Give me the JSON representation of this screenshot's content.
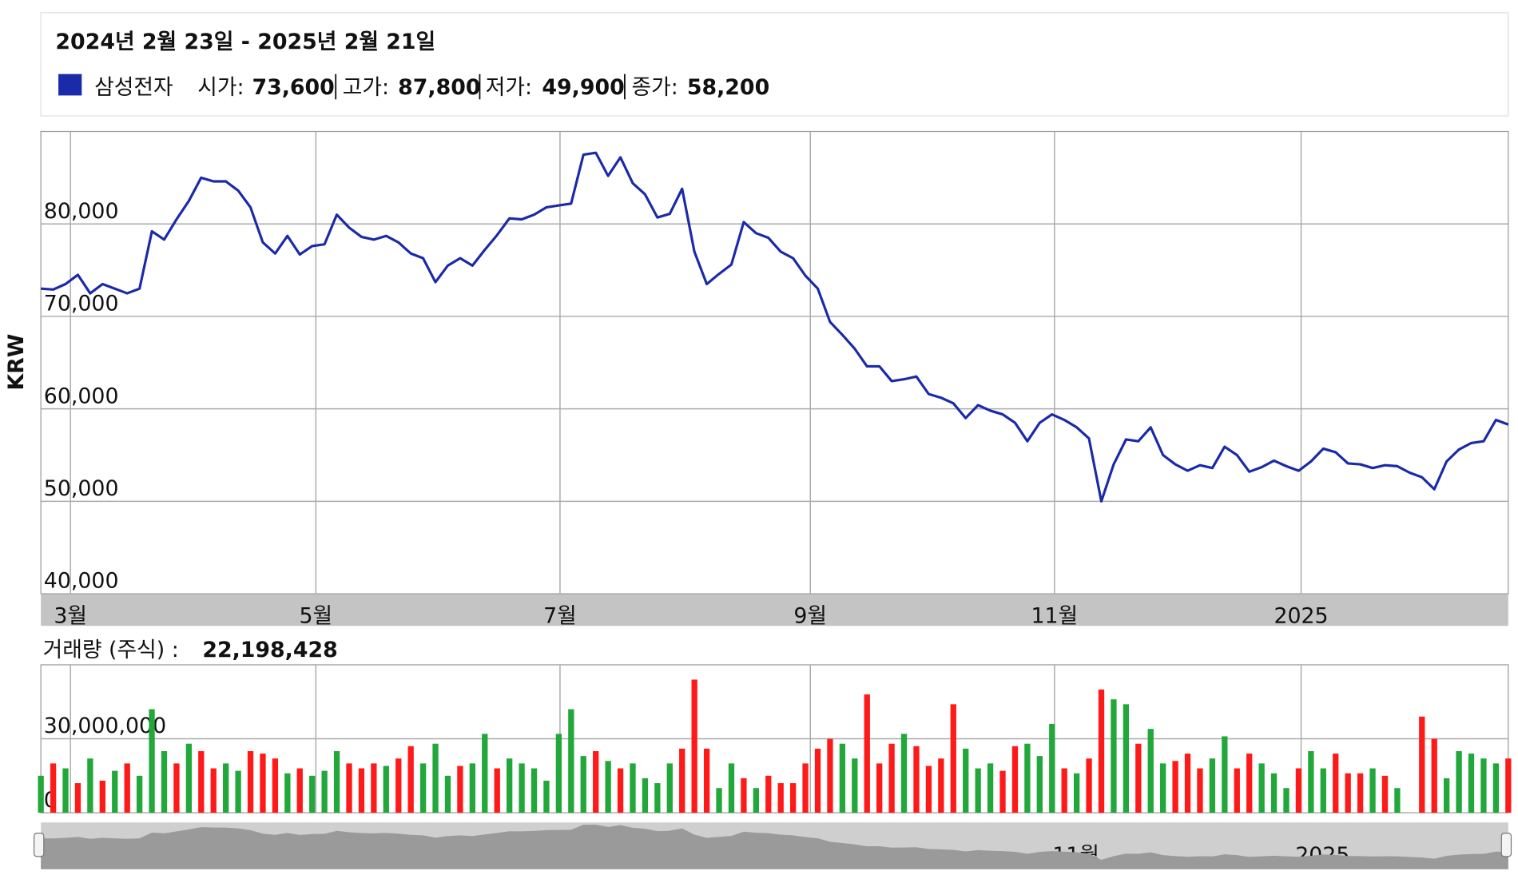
{
  "header": {
    "title": "2024년 2월 23일 - 2025년 2월 21일",
    "items": [
      {
        "label": "시가:",
        "value": "73,600"
      },
      {
        "label": "고가:",
        "value": "87,800"
      },
      {
        "label": "저가:",
        "value": "49,900"
      },
      {
        "label": "종가:",
        "value": "58,200"
      }
    ]
  },
  "chart_data": [
    {
      "type": "line",
      "ylabel": "KRW",
      "xlim": [
        0,
        119
      ],
      "xticks": [
        {
          "value": 2.4,
          "label": "3월"
        },
        {
          "value": 22.3,
          "label": "5월"
        },
        {
          "value": 42.1,
          "label": "7월"
        },
        {
          "value": 62.4,
          "label": "9월"
        },
        {
          "value": 82.2,
          "label": "11월"
        },
        {
          "value": 102.2,
          "label": "2025"
        }
      ],
      "ylim": [
        40000,
        90000
      ],
      "yticks": [
        {
          "value": 40000,
          "label": "40,000"
        },
        {
          "value": 50000,
          "label": "50,000"
        },
        {
          "value": 60000,
          "label": "60,000"
        },
        {
          "value": 70000,
          "label": "70,000"
        },
        {
          "value": 80000,
          "label": "80,000"
        }
      ],
      "grid": true,
      "series": [
        {
          "name": "삼성전자",
          "color": "#1a2aa8",
          "values": [
            73000,
            72900,
            73500,
            74500,
            72500,
            73500,
            73000,
            72500,
            73000,
            79200,
            78300,
            80500,
            82500,
            85000,
            84600,
            84600,
            83600,
            81800,
            78000,
            76800,
            78700,
            76700,
            77600,
            77800,
            81000,
            79600,
            78600,
            78300,
            78700,
            78000,
            76800,
            76300,
            73700,
            75500,
            76300,
            75500,
            77200,
            78800,
            80600,
            80500,
            81000,
            81800,
            82000,
            82200,
            87500,
            87700,
            85200,
            87200,
            84400,
            83200,
            80700,
            81100,
            83800,
            77000,
            73500,
            74600,
            75600,
            80200,
            79000,
            78500,
            77000,
            76300,
            74400,
            73000,
            69400,
            68000,
            66500,
            64600,
            64600,
            63000,
            63200,
            63500,
            61600,
            61200,
            60600,
            59000,
            60400,
            59800,
            59400,
            58500,
            56500,
            58500,
            59400,
            58800,
            58000,
            56800,
            50000,
            54000,
            56700,
            56500,
            58000,
            55000,
            54000,
            53300,
            53900,
            53600,
            55900,
            55000,
            53200,
            53700,
            54400,
            53800,
            53300,
            54300,
            55700,
            55300,
            54100,
            54000,
            53600,
            53900,
            53800,
            53100,
            52600,
            51300,
            54300,
            55600,
            56300,
            56500,
            58800,
            58300
          ]
        }
      ]
    },
    {
      "type": "bar",
      "title": "거래량 (주식) :",
      "title_value": "22,198,428",
      "ylim": [
        0,
        60000000
      ],
      "yticks": [
        0,
        {
          "value": 30000000,
          "label": "30,000,000"
        }
      ],
      "grid": true,
      "series": [
        {
          "values": [
            15000000,
            20000000,
            18000000,
            12000000,
            22000000,
            13000000,
            17000000,
            20000000,
            15000000,
            42000000,
            25000000,
            20000000,
            28000000,
            25000000,
            18000000,
            20000000,
            17000000,
            25000000,
            24000000,
            22000000,
            16000000,
            18000000,
            15000000,
            17000000,
            25000000,
            20000000,
            18000000,
            20000000,
            19000000,
            22000000,
            27000000,
            20000000,
            28000000,
            15000000,
            19000000,
            20000000,
            32000000,
            18000000,
            22000000,
            20000000,
            18000000,
            13000000,
            32000000,
            42000000,
            23000000,
            25000000,
            21000000,
            18000000,
            20000000,
            14000000,
            12000000,
            20000000,
            26000000,
            54000000,
            26000000,
            10000000,
            20000000,
            14000000,
            10000000,
            15000000,
            12000000,
            12000000,
            20000000,
            26000000,
            30000000,
            28000000,
            22000000,
            48000000,
            20000000,
            28000000,
            32000000,
            27000000,
            19000000,
            22000000,
            44000000,
            26000000,
            18000000,
            20000000,
            17000000,
            27000000,
            28000000,
            23000000,
            36000000,
            18000000,
            16000000,
            22000000,
            50000000,
            46000000,
            44000000,
            28000000,
            34000000,
            20000000,
            21000000,
            24000000,
            18000000,
            22000000,
            31000000,
            18000000,
            24000000,
            20000000,
            16000000,
            10000000,
            18000000,
            25000000,
            18000000,
            24000000,
            16000000,
            16000000,
            18000000,
            15000000,
            10000000,
            null,
            39000000,
            30000000,
            14000000,
            25000000,
            24000000,
            22000000,
            20000000,
            22000000
          ],
          "colors": [
            "#22a83a",
            "#ff1a1a",
            "#22a83a",
            "#ff1a1a",
            "#22a83a",
            "#ff1a1a",
            "#22a83a",
            "#ff1a1a",
            "#22a83a",
            "#22a83a",
            "#22a83a",
            "#ff1a1a",
            "#22a83a",
            "#ff1a1a",
            "#ff1a1a",
            "#22a83a",
            "#22a83a",
            "#ff1a1a",
            "#ff1a1a",
            "#ff1a1a",
            "#22a83a",
            "#ff1a1a",
            "#22a83a",
            "#22a83a",
            "#22a83a",
            "#ff1a1a",
            "#ff1a1a",
            "#ff1a1a",
            "#22a83a",
            "#ff1a1a",
            "#ff1a1a",
            "#22a83a",
            "#22a83a",
            "#22a83a",
            "#ff1a1a",
            "#22a83a",
            "#22a83a",
            "#ff1a1a",
            "#22a83a",
            "#22a83a",
            "#22a83a",
            "#22a83a",
            "#22a83a",
            "#22a83a",
            "#22a83a",
            "#ff1a1a",
            "#22a83a",
            "#ff1a1a",
            "#22a83a",
            "#22a83a",
            "#22a83a",
            "#22a83a",
            "#ff1a1a",
            "#ff1a1a",
            "#ff1a1a",
            "#22a83a",
            "#22a83a",
            "#ff1a1a",
            "#22a83a",
            "#ff1a1a",
            "#ff1a1a",
            "#ff1a1a",
            "#ff1a1a",
            "#ff1a1a",
            "#ff1a1a",
            "#22a83a",
            "#22a83a",
            "#ff1a1a",
            "#ff1a1a",
            "#ff1a1a",
            "#22a83a",
            "#ff1a1a",
            "#ff1a1a",
            "#ff1a1a",
            "#ff1a1a",
            "#22a83a",
            "#22a83a",
            "#22a83a",
            "#ff1a1a",
            "#ff1a1a",
            "#22a83a",
            "#22a83a",
            "#22a83a",
            "#ff1a1a",
            "#22a83a",
            "#ff1a1a",
            "#ff1a1a",
            "#22a83a",
            "#22a83a",
            "#ff1a1a",
            "#22a83a",
            "#22a83a",
            "#ff1a1a",
            "#ff1a1a",
            "#ff1a1a",
            "#22a83a",
            "#22a83a",
            "#ff1a1a",
            "#ff1a1a",
            "#22a83a",
            "#22a83a",
            "#22a83a",
            "#ff1a1a",
            "#22a83a",
            "#22a83a",
            "#ff1a1a",
            "#ff1a1a",
            "#ff1a1a",
            "#22a83a",
            "#ff1a1a",
            "#22a83a",
            null,
            "#ff1a1a",
            "#ff1a1a",
            "#22a83a",
            "#22a83a",
            "#22a83a",
            "#22a83a",
            "#22a83a",
            "#ff1a1a"
          ]
        }
      ]
    }
  ]
}
